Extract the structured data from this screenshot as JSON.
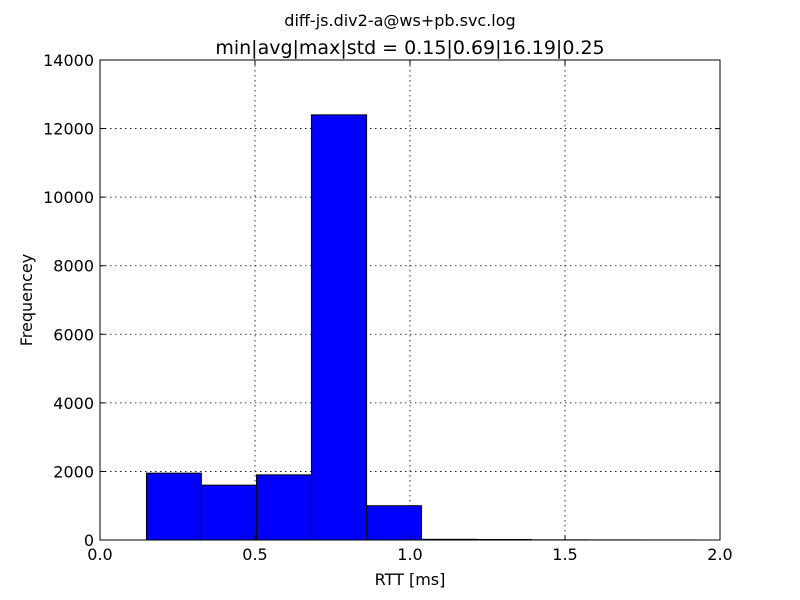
{
  "chart_data": {
    "type": "bar",
    "suptitle": "diff-js.div2-a@ws+pb.svc.log",
    "title": "min|avg|max|std = 0.15|0.69|16.19|0.25",
    "xlabel": "RTT [ms]",
    "ylabel": "Frequencey",
    "xlim": [
      0.0,
      2.0
    ],
    "ylim": [
      0,
      14000
    ],
    "xticks": [
      "0.0",
      "0.5",
      "1.0",
      "1.5",
      "2.0"
    ],
    "yticks": [
      "0",
      "2000",
      "4000",
      "6000",
      "8000",
      "10000",
      "12000",
      "14000"
    ],
    "grid": true,
    "bins": [
      {
        "x0": 0.15,
        "x1": 0.327,
        "value": 1950
      },
      {
        "x0": 0.327,
        "x1": 0.505,
        "value": 1600
      },
      {
        "x0": 0.505,
        "x1": 0.682,
        "value": 1900
      },
      {
        "x0": 0.682,
        "x1": 0.86,
        "value": 12400
      },
      {
        "x0": 0.86,
        "x1": 1.037,
        "value": 1000
      },
      {
        "x0": 1.037,
        "x1": 1.215,
        "value": 20
      },
      {
        "x0": 1.215,
        "x1": 1.392,
        "value": 15
      },
      {
        "x0": 1.392,
        "x1": 1.57,
        "value": 5
      },
      {
        "x0": 1.57,
        "x1": 1.747,
        "value": 3
      },
      {
        "x0": 1.747,
        "x1": 1.925,
        "value": 2
      }
    ],
    "bar_color": "#0000ff"
  }
}
